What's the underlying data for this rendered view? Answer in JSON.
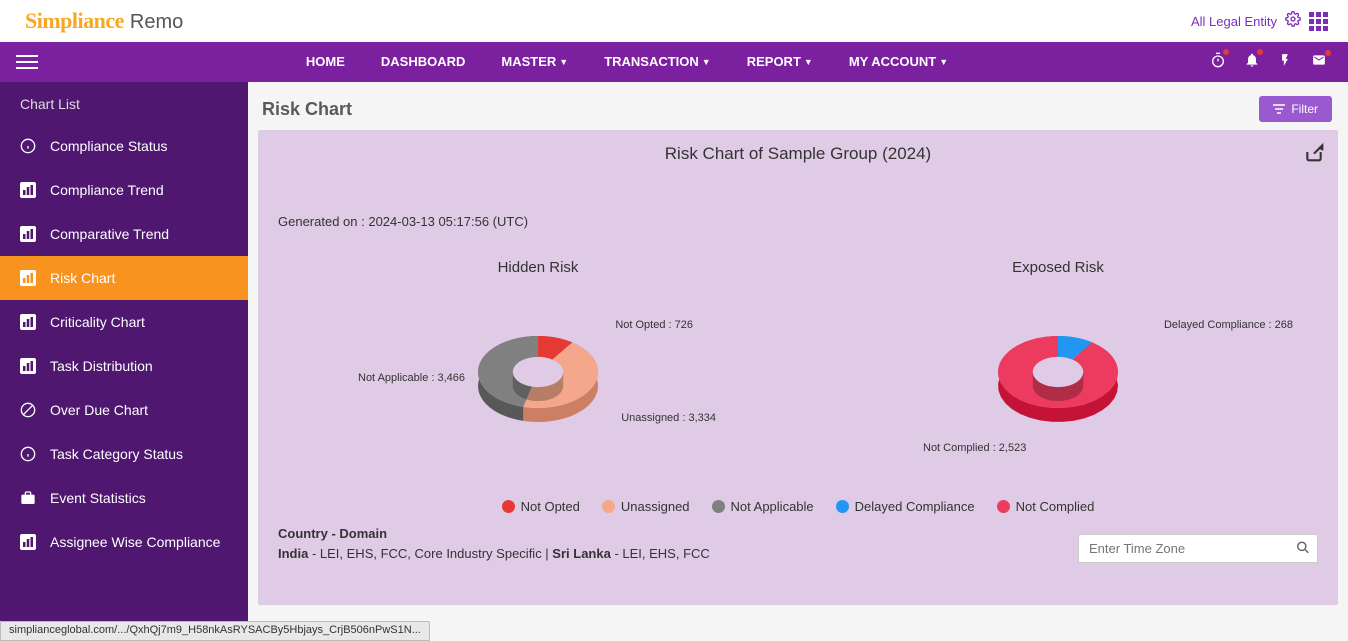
{
  "header": {
    "logo_main": "Simpliance",
    "logo_sub": "Remo",
    "legal_entity": "All Legal Entity"
  },
  "nav": {
    "items": [
      {
        "label": "HOME",
        "dropdown": false
      },
      {
        "label": "DASHBOARD",
        "dropdown": false
      },
      {
        "label": "MASTER",
        "dropdown": true
      },
      {
        "label": "TRANSACTION",
        "dropdown": true
      },
      {
        "label": "REPORT",
        "dropdown": true
      },
      {
        "label": "MY ACCOUNT",
        "dropdown": true
      }
    ]
  },
  "sidebar": {
    "title": "Chart List",
    "items": [
      {
        "label": "Compliance Status",
        "icon": "info"
      },
      {
        "label": "Compliance Trend",
        "icon": "bar"
      },
      {
        "label": "Comparative Trend",
        "icon": "bar"
      },
      {
        "label": "Risk Chart",
        "icon": "bar",
        "active": true
      },
      {
        "label": "Criticality Chart",
        "icon": "bar"
      },
      {
        "label": "Task Distribution",
        "icon": "bar"
      },
      {
        "label": "Over Due Chart",
        "icon": "block"
      },
      {
        "label": "Task Category Status",
        "icon": "info"
      },
      {
        "label": "Event Statistics",
        "icon": "briefcase"
      },
      {
        "label": "Assignee Wise Compliance",
        "icon": "bar"
      }
    ]
  },
  "main": {
    "title": "Risk Chart",
    "filter_label": "Filter",
    "chart_title": "Risk Chart of Sample Group (2024)",
    "generated_label": "Generated on : 2024-03-13 05:17:56 (UTC)",
    "hidden_risk": {
      "title": "Hidden Risk",
      "slices": [
        {
          "name": "Not Opted",
          "value": 726,
          "color": "#e53935",
          "label": "Not Opted : 726"
        },
        {
          "name": "Unassigned",
          "value": 3334,
          "color": "#f4a78a",
          "label": "Unassigned : 3,334"
        },
        {
          "name": "Not Applicable",
          "value": 3466,
          "color": "#808080",
          "label": "Not Applicable : 3,466"
        }
      ],
      "inner_radius": 0.42,
      "outer_radius": 1.0
    },
    "exposed_risk": {
      "title": "Exposed Risk",
      "slices": [
        {
          "name": "Delayed Compliance",
          "value": 268,
          "color": "#2196f3",
          "label": "Delayed Compliance : 268"
        },
        {
          "name": "Not Complied",
          "value": 2523,
          "color": "#ec3b5f",
          "label": "Not Complied : 2,523"
        }
      ],
      "inner_radius": 0.42,
      "outer_radius": 1.0
    },
    "legend": [
      {
        "label": "Not Opted",
        "color": "#e53935"
      },
      {
        "label": "Unassigned",
        "color": "#f4a78a"
      },
      {
        "label": "Not Applicable",
        "color": "#808080"
      },
      {
        "label": "Delayed Compliance",
        "color": "#2196f3"
      },
      {
        "label": "Not Complied",
        "color": "#ec3b5f"
      }
    ],
    "footer": {
      "heading": "Country - Domain",
      "line1_country1": "India",
      "line1_domains1": " - LEI, EHS, FCC, Core Industry Specific | ",
      "line1_country2": "Sri Lanka",
      "line1_domains2": " - LEI, EHS, FCC"
    },
    "tz_placeholder": "Enter Time Zone"
  },
  "status_bar": "simplianceglobal.com/.../QxhQj7m9_H58nkAsRYSACBy5Hbjays_CrjB506nPwS1N...",
  "colors": {
    "nav_bg": "#7b219f",
    "sidebar_bg": "#4f1770",
    "active_bg": "#f7931e",
    "panel_bg": "#e0cbe6",
    "filter_btn": "#9b59d0",
    "logo_orange": "#f7a823"
  }
}
